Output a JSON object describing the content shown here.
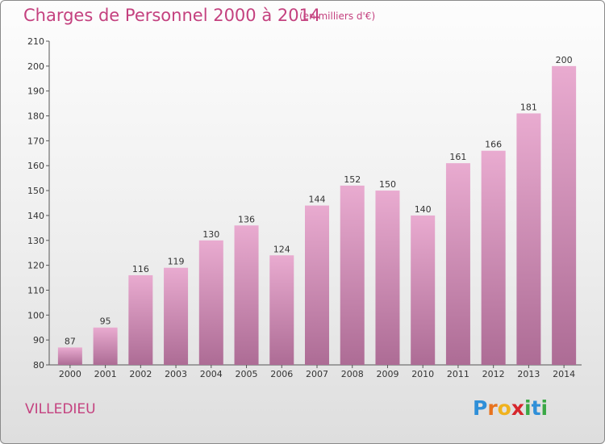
{
  "header": {
    "title": "Charges de Personnel 2000 à 2014",
    "subtitle": "(en milliers d'€)"
  },
  "footer": {
    "town": "VILLEDIEU",
    "logo": "Proxiti"
  },
  "colors": {
    "accent": "#c4417f",
    "bar_top": "#e8a8cf",
    "bar_bottom": "#b06f97"
  },
  "chart_data": {
    "type": "bar",
    "title": "Charges de Personnel 2000 à 2014",
    "subtitle": "(en milliers d'€)",
    "categories": [
      "2000",
      "2001",
      "2002",
      "2003",
      "2004",
      "2005",
      "2006",
      "2007",
      "2008",
      "2009",
      "2010",
      "2011",
      "2012",
      "2013",
      "2014"
    ],
    "values": [
      87,
      95,
      116,
      119,
      130,
      136,
      124,
      144,
      152,
      150,
      140,
      161,
      166,
      181,
      200
    ],
    "ylim": [
      80,
      210
    ],
    "yticks": [
      80,
      90,
      100,
      110,
      120,
      130,
      140,
      150,
      160,
      170,
      180,
      190,
      200,
      210
    ],
    "grid": false,
    "data_labels": true
  }
}
